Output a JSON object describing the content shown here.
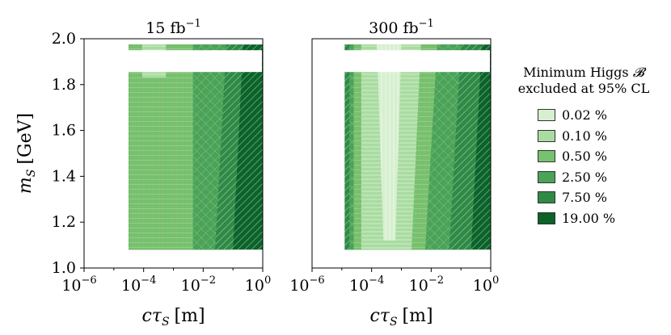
{
  "chart_data": [
    {
      "type": "heatmap",
      "title": "15 fb",
      "title_sup": "−1",
      "ylabel": "m",
      "ylabel_sub": "S",
      "ylabel_unit": "[GeV]",
      "xlabel": "cτ",
      "xlabel_sub": "S",
      "xlabel_unit": "[m]",
      "x_scale": "log",
      "xlim": [
        1e-06,
        1
      ],
      "ylim": [
        1.0,
        2.0
      ],
      "x_ticks": [
        "10",
        "10",
        "10",
        "10"
      ],
      "x_tick_exponents": [
        "−6",
        "−4",
        "−2",
        "0"
      ],
      "y_ticks": [
        "1.0",
        "1.2",
        "1.4",
        "1.6",
        "1.8",
        "2.0"
      ],
      "excluded_band_mass": [
        1.855,
        1.95
      ],
      "regions": [
        {
          "level": "19.00 %",
          "x": [
            [
              3.16e-05,
              1.08
            ],
            [
              3.16e-05,
              1.975
            ],
            [
              1.0,
              1.975
            ],
            [
              1.0,
              1.08
            ]
          ]
        },
        {
          "level": "7.50 %",
          "x": [
            [
              3.16e-05,
              1.08
            ],
            [
              3.16e-05,
              1.975
            ],
            [
              0.22,
              1.975
            ],
            [
              0.1,
              1.08
            ]
          ]
        },
        {
          "level": "2.50 %",
          "x": [
            [
              3.16e-05,
              1.08
            ],
            [
              3.16e-05,
              1.975
            ],
            [
              0.06,
              1.975
            ],
            [
              0.025,
              1.08
            ]
          ]
        },
        {
          "level": "0.50 %",
          "x": [
            [
              3.16e-05,
              1.08
            ],
            [
              3.16e-05,
              1.975
            ],
            [
              0.0045,
              1.975
            ],
            [
              0.0045,
              1.08
            ]
          ]
        },
        {
          "level": "0.10 %",
          "x": [
            [
              8.9e-05,
              1.83
            ],
            [
              8.9e-05,
              1.975
            ],
            [
              0.00056,
              1.975
            ],
            [
              0.00056,
              1.83
            ]
          ]
        }
      ]
    },
    {
      "type": "heatmap",
      "title": "300 fb",
      "title_sup": "−1",
      "xlabel": "cτ",
      "xlabel_sub": "S",
      "xlabel_unit": "[m]",
      "x_scale": "log",
      "xlim": [
        1e-06,
        1
      ],
      "ylim": [
        1.0,
        2.0
      ],
      "x_ticks": [
        "10",
        "10",
        "10",
        "10"
      ],
      "x_tick_exponents": [
        "−6",
        "−4",
        "−2",
        "0"
      ],
      "excluded_band_mass": [
        1.855,
        1.95
      ],
      "regions": [
        {
          "level": "19.00 %",
          "x": [
            [
              1.25e-05,
              1.08
            ],
            [
              1.25e-05,
              1.975
            ],
            [
              1.0,
              1.975
            ],
            [
              1.0,
              1.08
            ]
          ]
        },
        {
          "level": "7.50 %",
          "x": [
            [
              1.25e-05,
              1.08
            ],
            [
              1.25e-05,
              1.975
            ],
            [
              0.5,
              1.975
            ],
            [
              0.22,
              1.08
            ]
          ]
        },
        {
          "level": "2.50 %",
          "x": [
            [
              1.8e-05,
              1.08
            ],
            [
              1.8e-05,
              1.975
            ],
            [
              0.1,
              1.975
            ],
            [
              0.04,
              1.08
            ]
          ]
        },
        {
          "level": "0.50 %",
          "x": [
            [
              2.5e-05,
              1.08
            ],
            [
              2.5e-05,
              1.975
            ],
            [
              0.016,
              1.975
            ],
            [
              0.0063,
              1.08
            ]
          ]
        },
        {
          "level": "0.10 %",
          "x": [
            [
              4.5e-05,
              1.08
            ],
            [
              4.5e-05,
              1.975
            ],
            [
              0.0045,
              1.975
            ],
            [
              0.0022,
              1.08
            ]
          ]
        },
        {
          "level": "0.02 %",
          "x": [
            [
              0.00025,
              1.12
            ],
            [
              0.00015,
              1.975
            ],
            [
              0.001,
              1.975
            ],
            [
              0.00063,
              1.12
            ]
          ]
        }
      ]
    }
  ],
  "legend": {
    "title_line1": "Minimum Higgs",
    "title_symbol": "𝓑",
    "title_line2": "excluded at 95% CL",
    "items": [
      {
        "label": "0.02 %",
        "color": "#d6efd0"
      },
      {
        "label": "0.10 %",
        "color": "#a9dca0"
      },
      {
        "label": "0.50 %",
        "color": "#76c26e"
      },
      {
        "label": "2.50 %",
        "color": "#4aa357"
      },
      {
        "label": "7.50 %",
        "color": "#2e8a45"
      },
      {
        "label": "19.00 %",
        "color": "#0b6329"
      }
    ]
  }
}
